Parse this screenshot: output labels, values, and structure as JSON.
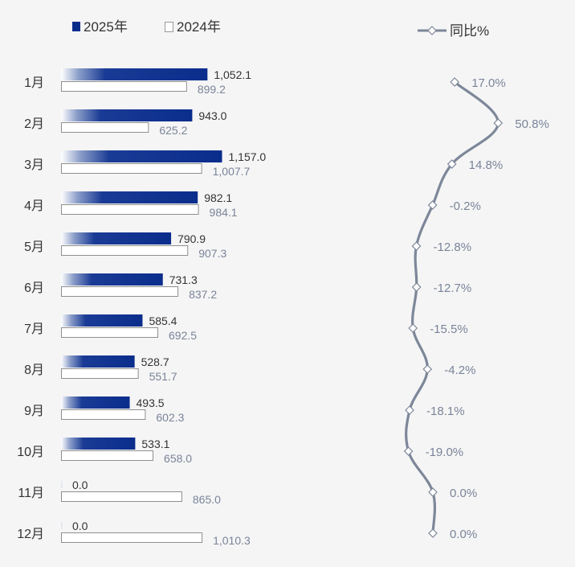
{
  "chart_data": {
    "type": "bar+line",
    "orientation": "horizontal",
    "categories": [
      "1月",
      "2月",
      "3月",
      "4月",
      "5月",
      "6月",
      "7月",
      "8月",
      "9月",
      "10月",
      "11月",
      "12月"
    ],
    "series": [
      {
        "name": "2025年",
        "kind": "bar",
        "color": "#0a2d8c",
        "values": [
          1052.1,
          943.0,
          1157.0,
          982.1,
          790.9,
          731.3,
          585.4,
          528.7,
          493.5,
          533.1,
          0.0,
          0.0
        ],
        "labels": [
          "1,052.1",
          "943.0",
          "1,157.0",
          "982.1",
          "790.9",
          "731.3",
          "585.4",
          "528.7",
          "493.5",
          "533.1",
          "0.0",
          "0.0"
        ]
      },
      {
        "name": "2024年",
        "kind": "bar",
        "color": "#ffffff",
        "values": [
          899.2,
          625.2,
          1007.7,
          984.1,
          907.3,
          837.2,
          692.5,
          551.7,
          602.3,
          658.0,
          865.0,
          1010.3
        ],
        "labels": [
          "899.2",
          "625.2",
          "1,007.7",
          "984.1",
          "907.3",
          "837.2",
          "692.5",
          "551.7",
          "602.3",
          "658.0",
          "865.0",
          "1,010.3"
        ]
      },
      {
        "name": "同比%",
        "kind": "line",
        "color": "#7d8799",
        "values": [
          17.0,
          50.8,
          14.8,
          -0.2,
          -12.8,
          -12.7,
          -15.5,
          -4.2,
          -18.1,
          -19.0,
          0.0,
          0.0
        ],
        "labels": [
          "17.0%",
          "50.8%",
          "14.8%",
          "-0.2%",
          "-12.8%",
          "-12.7%",
          "-15.5%",
          "-4.2%",
          "-18.1%",
          "-19.0%",
          "0.0%",
          "0.0%"
        ]
      }
    ],
    "legend": {
      "position": "top"
    },
    "grid": false
  }
}
